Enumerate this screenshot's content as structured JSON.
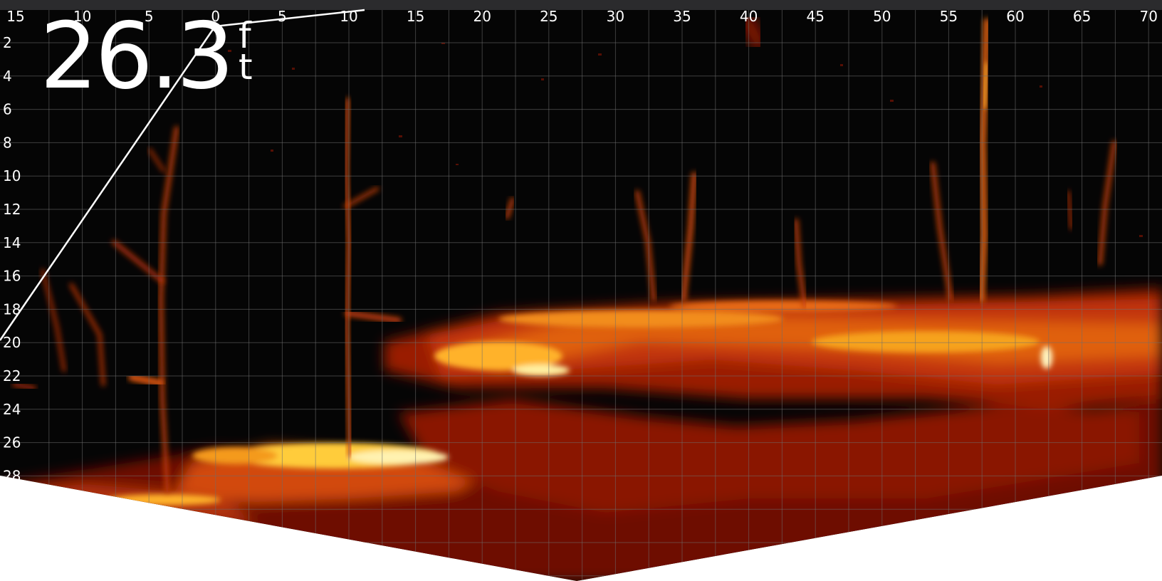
{
  "depth_readout": {
    "value": "26.3",
    "unit_letter_1": "f",
    "unit_letter_2": "t"
  },
  "horizontal_scale": {
    "unit": "ft",
    "labels": [
      "15",
      "10",
      "5",
      "0",
      "5",
      "10",
      "15",
      "20",
      "25",
      "30",
      "35",
      "40",
      "45",
      "50",
      "55",
      "60",
      "65",
      "70"
    ]
  },
  "depth_scale": {
    "unit": "ft",
    "labels": [
      "2",
      "4",
      "6",
      "8",
      "10",
      "12",
      "14",
      "16",
      "18",
      "20",
      "22",
      "24",
      "26",
      "28"
    ]
  },
  "colors": {
    "background": "#050505",
    "grid": "#6e6e6e",
    "text": "#ffffff",
    "bezel": "#2b2b2d",
    "palette": [
      "#3a0400",
      "#7a1204",
      "#b82a06",
      "#e0520c",
      "#f48a16",
      "#ffc230",
      "#fff0a0"
    ]
  },
  "display_mode": "forward-looking live sonar"
}
